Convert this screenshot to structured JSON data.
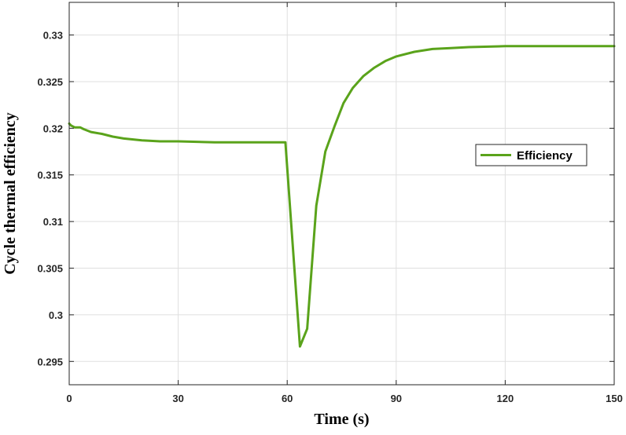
{
  "chart_data": {
    "type": "line",
    "title": "",
    "xlabel": "Time (s)",
    "ylabel": "Cycle thermal efficiency",
    "xlim": [
      0,
      150
    ],
    "ylim": [
      0.2925,
      0.3335
    ],
    "xticks": [
      0,
      30,
      60,
      90,
      120,
      150
    ],
    "xtick_labels": [
      "0",
      "30",
      "60",
      "90",
      "120",
      "150"
    ],
    "yticks": [
      0.295,
      0.3,
      0.305,
      0.31,
      0.315,
      0.32,
      0.325,
      0.33
    ],
    "ytick_labels": [
      "0.295",
      "0.3",
      "0.305",
      "0.31",
      "0.315",
      "0.32",
      "0.325",
      "0.33"
    ],
    "grid": true,
    "legend_position": "right",
    "series": [
      {
        "name": "Efficiency",
        "color": "#5aa31b",
        "x": [
          0,
          0.5,
          1.5,
          3,
          4,
          6,
          9,
          12,
          15,
          20,
          25,
          30,
          40,
          50,
          59.5,
          63.5,
          65.5,
          68,
          70.5,
          73,
          75.5,
          78,
          81,
          84,
          87,
          90,
          95,
          100,
          105,
          110,
          120,
          130,
          140,
          150
        ],
        "y": [
          0.3205,
          0.3203,
          0.3201,
          0.3201,
          0.3199,
          0.3196,
          0.3194,
          0.3191,
          0.3189,
          0.3187,
          0.3186,
          0.3186,
          0.3185,
          0.3185,
          0.3185,
          0.2966,
          0.2985,
          0.3117,
          0.3175,
          0.3202,
          0.3227,
          0.3243,
          0.3256,
          0.3265,
          0.3272,
          0.3277,
          0.3282,
          0.3285,
          0.3286,
          0.3287,
          0.3288,
          0.3288,
          0.3288,
          0.3288
        ]
      }
    ]
  }
}
